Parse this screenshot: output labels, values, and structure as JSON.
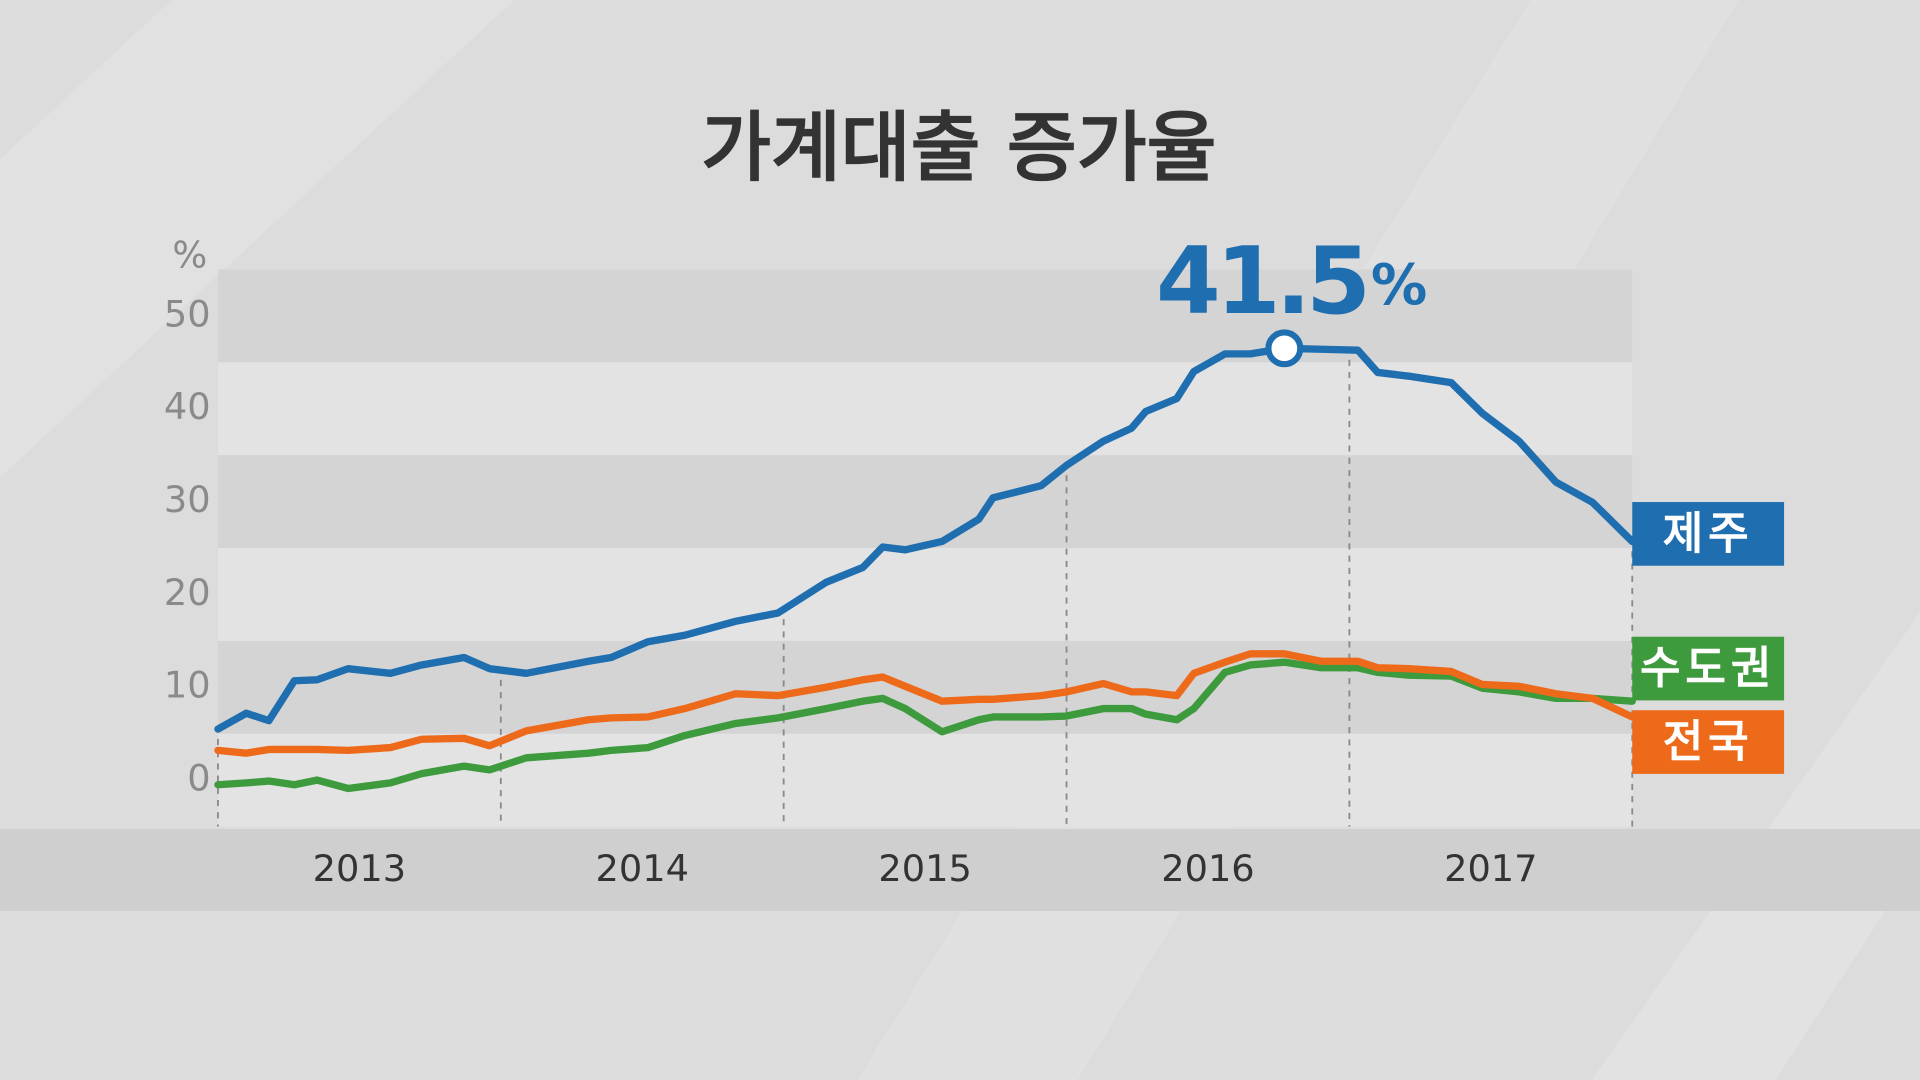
{
  "chart_data": {
    "type": "line",
    "title": "가계대출 증가율",
    "y_unit": "%",
    "x": [
      2013.0,
      2013.1,
      2013.18,
      2013.27,
      2013.35,
      2013.46,
      2013.61,
      2013.72,
      2013.87,
      2013.96,
      2014.09,
      2014.31,
      2014.39,
      2014.52,
      2014.65,
      2014.83,
      2014.98,
      2015.15,
      2015.28,
      2015.35,
      2015.43,
      2015.56,
      2015.69,
      2015.74,
      2015.91,
      2016.0,
      2016.13,
      2016.23,
      2016.28,
      2016.39,
      2016.45,
      2016.56,
      2016.65,
      2016.77,
      2016.9,
      2017.03,
      2017.1,
      2017.21,
      2017.36,
      2017.47,
      2017.6,
      2017.73,
      2017.86,
      2018.0
    ],
    "xlim": [
      2013,
      2018
    ],
    "categories": [
      "2013",
      "2014",
      "2015",
      "2016",
      "2017"
    ],
    "xgrid": [
      2013,
      2014,
      2015,
      2016,
      2017,
      2018
    ],
    "ylim": [
      -5,
      55
    ],
    "yticks": [
      0,
      10,
      20,
      30,
      40,
      50
    ],
    "series": [
      {
        "name": "제주",
        "color": "#1f6eb0",
        "values": [
          5.5,
          7.2,
          6.4,
          10.7,
          10.8,
          12.0,
          11.5,
          12.4,
          13.2,
          12.0,
          11.5,
          12.8,
          13.2,
          14.9,
          15.6,
          17.1,
          18.0,
          21.3,
          22.9,
          25.1,
          24.8,
          25.7,
          28.1,
          30.4,
          31.7,
          33.9,
          36.5,
          37.9,
          39.7,
          41.1,
          44.0,
          45.9,
          45.9,
          46.5,
          46.4,
          46.3,
          43.9,
          43.5,
          42.8,
          39.5,
          36.5,
          32.1,
          29.9,
          25.7
        ]
      },
      {
        "name": "수도권",
        "color": "#3d9a3d",
        "values": [
          -0.5,
          -0.3,
          -0.1,
          -0.5,
          0,
          -0.9,
          -0.3,
          0.7,
          1.5,
          1.1,
          2.4,
          2.9,
          3.2,
          3.5,
          4.8,
          6.1,
          6.7,
          7.7,
          8.5,
          8.8,
          7.7,
          5.2,
          6.5,
          6.8,
          6.8,
          6.9,
          7.7,
          7.7,
          7.1,
          6.5,
          7.7,
          11.6,
          12.4,
          12.7,
          12.1,
          12.1,
          11.6,
          11.3,
          11.2,
          9.9,
          9.5,
          8.8,
          8.8,
          8.5
        ]
      },
      {
        "name": "전국",
        "color": "#ee6a1b",
        "values": [
          3.2,
          2.9,
          3.3,
          3.3,
          3.3,
          3.2,
          3.5,
          4.4,
          4.5,
          3.7,
          5.3,
          6.5,
          6.7,
          6.8,
          7.7,
          9.3,
          9.1,
          10.0,
          10.8,
          11.1,
          10.1,
          8.5,
          8.7,
          8.7,
          9.1,
          9.5,
          10.4,
          9.5,
          9.5,
          9.1,
          11.5,
          12.7,
          13.6,
          13.6,
          12.8,
          12.8,
          12.1,
          12.0,
          11.7,
          10.3,
          10.1,
          9.3,
          8.8,
          6.8
        ]
      }
    ],
    "annotation": {
      "label": "41.5",
      "unit": "%"
    }
  }
}
